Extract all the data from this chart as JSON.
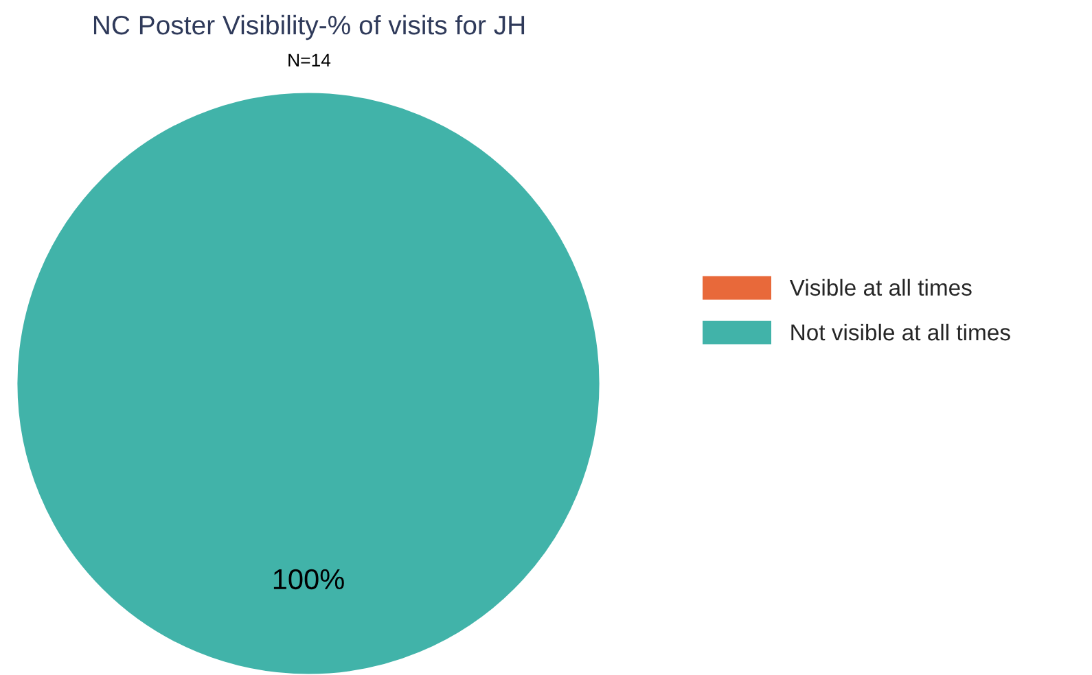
{
  "chart_data": {
    "type": "pie",
    "title": "NC Poster Visibility-% of visits for JH",
    "subtitle": "N=14",
    "categories": [
      "Visible at all times",
      "Not visible at all times"
    ],
    "values": [
      0,
      100
    ],
    "colors": [
      "#e8693a",
      "#41b3a9"
    ],
    "value_labels": [
      null,
      "100%"
    ],
    "legend": "right"
  }
}
